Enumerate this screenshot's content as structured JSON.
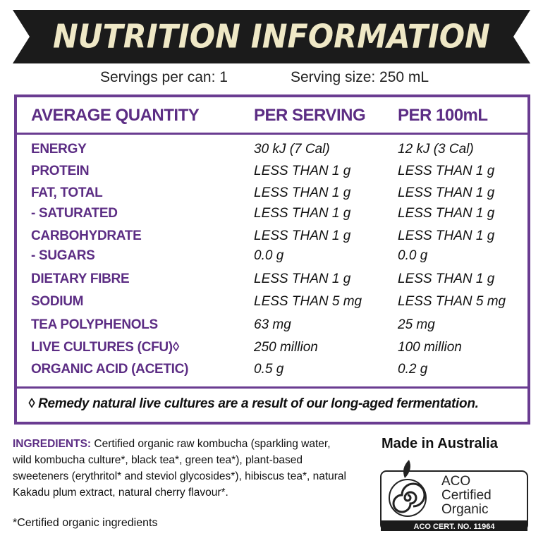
{
  "header": {
    "title": "NUTRITION INFORMATION"
  },
  "servings": {
    "per_can": "Servings per can: 1",
    "size": "Serving size: 250 mL"
  },
  "table": {
    "headers": [
      "AVERAGE QUANTITY",
      "PER SERVING",
      "PER 100mL"
    ],
    "rows": [
      [
        "ENERGY",
        "30 kJ (7 Cal)",
        "12 kJ (3 Cal)"
      ],
      [
        "PROTEIN",
        "LESS THAN 1 g",
        "LESS THAN 1 g"
      ],
      [
        "FAT, TOTAL",
        "LESS THAN 1 g",
        "LESS THAN 1 g"
      ],
      [
        "- SATURATED",
        "LESS THAN 1 g",
        "LESS THAN 1 g"
      ],
      [
        "CARBOHYDRATE",
        "LESS THAN 1 g",
        "LESS THAN 1 g"
      ],
      [
        "- SUGARS",
        "0.0 g",
        "0.0 g"
      ],
      [
        "DIETARY FIBRE",
        "LESS THAN 1 g",
        "LESS THAN 1 g"
      ],
      [
        "SODIUM",
        "LESS THAN 5 mg",
        "LESS THAN 5 mg"
      ],
      [
        "TEA POLYPHENOLS",
        "63 mg",
        "25 mg"
      ],
      [
        "LIVE CULTURES (CFU)◊",
        "250 million",
        "100 million"
      ],
      [
        "ORGANIC ACID (ACETIC)",
        "0.5 g",
        "0.2 g"
      ]
    ],
    "footnote": "◊ Remedy natural live cultures are a result of our long-aged fermentation."
  },
  "ingredients": {
    "label": "INGREDIENTS:",
    "text": "Certified organic raw kombucha (sparkling water, wild kombucha culture*, black tea*, green tea*), plant-based sweeteners (erythritol* and steviol glycosides*), hibiscus tea*, natural Kakadu plum extract, natural cherry flavour*."
  },
  "certified_note": "*Certified organic ingredients",
  "made_in": "Made in Australia",
  "logo": {
    "lines": [
      "ACO",
      "Certified",
      "Organic"
    ],
    "cert": "ACO CERT. NO. 11964"
  }
}
